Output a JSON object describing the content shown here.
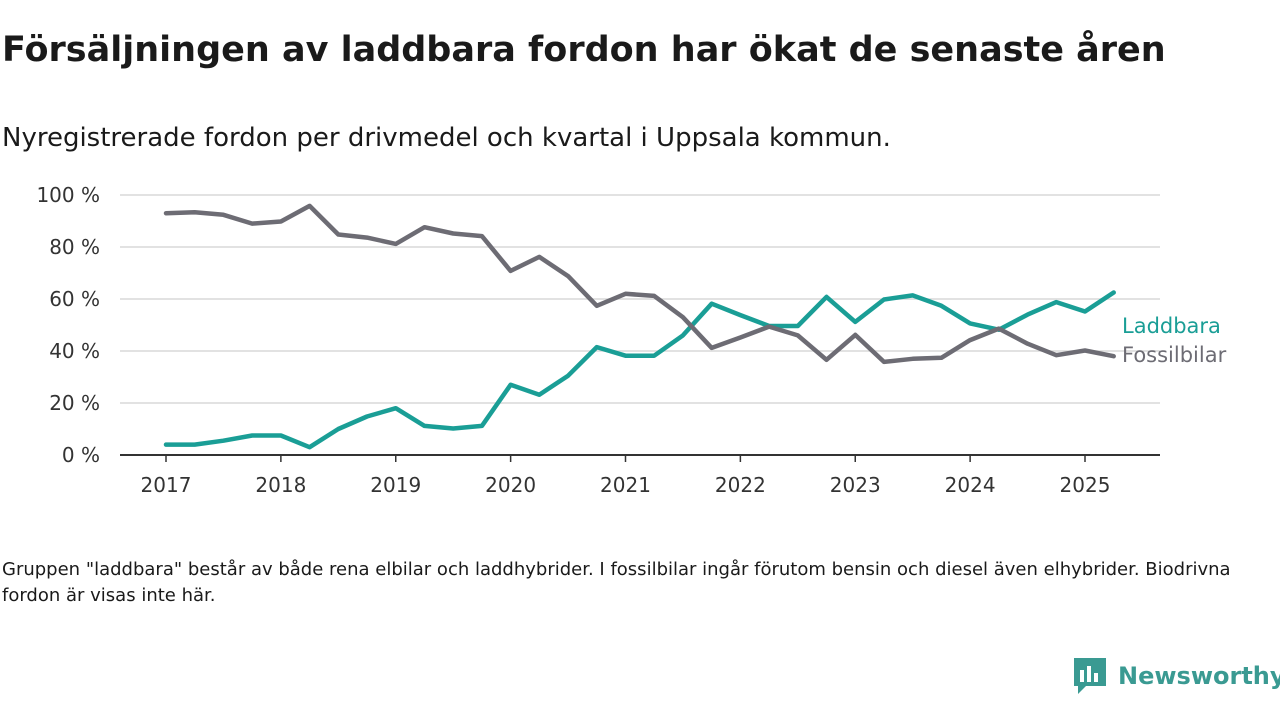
{
  "header": {
    "title": "Försäljningen av laddbara fordon har ökat de senaste åren",
    "subtitle": "Nyregistrerade fordon per drivmedel och kvartal i Uppsala kommun."
  },
  "chart_data": {
    "type": "line",
    "title": "Försäljningen av laddbara fordon har ökat de senaste åren",
    "subtitle": "Nyregistrerade fordon per drivmedel och kvartal i Uppsala kommun.",
    "xlabel": "",
    "ylabel": "",
    "x_ticks": [
      "2017",
      "2018",
      "2019",
      "2020",
      "2021",
      "2022",
      "2023",
      "2024",
      "2025"
    ],
    "y_ticks": [
      "0 %",
      "20 %",
      "40 %",
      "60 %",
      "80 %",
      "100 %"
    ],
    "ylim": [
      0,
      100
    ],
    "grid": "horizontal",
    "legend": "direct labels at right end of lines",
    "x": [
      "2017 Q1",
      "2017 Q2",
      "2017 Q3",
      "2017 Q4",
      "2018 Q1",
      "2018 Q2",
      "2018 Q3",
      "2018 Q4",
      "2019 Q1",
      "2019 Q2",
      "2019 Q3",
      "2019 Q4",
      "2020 Q1",
      "2020 Q2",
      "2020 Q3",
      "2020 Q4",
      "2021 Q1",
      "2021 Q2",
      "2021 Q3",
      "2021 Q4",
      "2022 Q1",
      "2022 Q2",
      "2022 Q3",
      "2022 Q4",
      "2023 Q1",
      "2023 Q2",
      "2023 Q3",
      "2023 Q4",
      "2024 Q1",
      "2024 Q2",
      "2024 Q3",
      "2024 Q4",
      "2025 Q1",
      "2025 Q2"
    ],
    "series": [
      {
        "name": "Laddbara",
        "color": "#1a9e96",
        "values": [
          4,
          4,
          5.5,
          7.5,
          7.5,
          3,
          10,
          14.8,
          18,
          11.2,
          10.2,
          11.2,
          27,
          23.2,
          30.5,
          41.5,
          38.2,
          38.2,
          46,
          58.2,
          53.8,
          49.6,
          49.6,
          60.8,
          51.2,
          59.8,
          61.4,
          57.4,
          50.6,
          48.2,
          54,
          58.8,
          55.2,
          62.5
        ]
      },
      {
        "name": "Fossilbilar",
        "color": "#6d6c74",
        "values": [
          93,
          93.4,
          92.4,
          89,
          89.8,
          95.8,
          84.8,
          83.6,
          81.2,
          87.6,
          85.2,
          84.2,
          70.8,
          76.2,
          68.8,
          57.4,
          62,
          61.2,
          53,
          41.2,
          45.2,
          49.4,
          46,
          36.6,
          46.2,
          35.8,
          37,
          37.4,
          44.2,
          48.6,
          42.8,
          38.4,
          40.2,
          38
        ]
      }
    ]
  },
  "footnote": "Gruppen \"laddbara\" består av både rena elbilar och laddhybrider. I fossilbilar ingår förutom bensin och diesel även elhybrider. Biodrivna fordon är visas inte här.",
  "branding": {
    "name": "Newsworthy",
    "logo_icon": "newsworthy-logo-icon",
    "color": "#3a9a92"
  }
}
